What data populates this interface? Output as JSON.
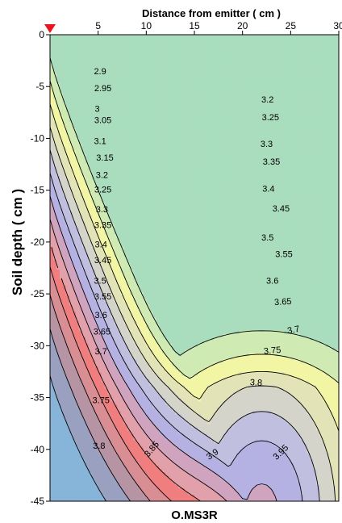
{
  "chart_data": {
    "type": "contour",
    "title": "O.MS3R",
    "xlabel": "Distance from emitter ( cm )",
    "ylabel": "Soil depth ( cm )",
    "xlim": [
      0,
      30
    ],
    "ylim": [
      -45,
      0
    ],
    "x_ticks": [
      "5",
      "10",
      "15",
      "20",
      "25",
      "30"
    ],
    "y_ticks": [
      "0",
      "-5",
      "-10",
      "-15",
      "-20",
      "-25",
      "-30",
      "-35",
      "-40",
      "-45"
    ],
    "marker": {
      "shape": "triangle-down",
      "x": 0,
      "y": 0,
      "color": "#e8141e"
    },
    "level_colors": [
      {
        "level": 2.85,
        "color": "#a9ddbd"
      },
      {
        "level": 2.9,
        "color": "#cfeab3"
      },
      {
        "level": 2.95,
        "color": "#f2f5a4"
      },
      {
        "level": 3.0,
        "color": "#e2e3b6"
      },
      {
        "level": 3.05,
        "color": "#d4d4cb"
      },
      {
        "level": 3.1,
        "color": "#c0bfdf"
      },
      {
        "level": 3.15,
        "color": "#b5b2e3"
      },
      {
        "level": 3.2,
        "color": "#d0a4bf"
      },
      {
        "level": 3.25,
        "color": "#e2a0ab"
      },
      {
        "level": 3.3,
        "color": "#f07e7e"
      },
      {
        "level": 3.35,
        "color": "#d98e94"
      },
      {
        "level": 3.4,
        "color": "#b794a4"
      },
      {
        "level": 3.45,
        "color": "#9aa0bf"
      },
      {
        "level": 3.5,
        "color": "#87b4d9"
      },
      {
        "level": 3.55,
        "color": "#7eb1d6"
      },
      {
        "level": 3.6,
        "color": "#93adbd"
      },
      {
        "level": 3.65,
        "color": "#aeb0a3"
      },
      {
        "level": 3.7,
        "color": "#d9ad7c"
      },
      {
        "level": 3.75,
        "color": "#fbb06c"
      },
      {
        "level": 3.8,
        "color": "#e8bd63"
      },
      {
        "level": 3.85,
        "color": "#dcca6a"
      },
      {
        "level": 3.9,
        "color": "#c4d466"
      },
      {
        "level": 3.95,
        "color": "#b3dc68"
      },
      {
        "level": 4.0,
        "color": "#c6dc86"
      },
      {
        "level": 4.05,
        "color": "#ddd9ae"
      }
    ],
    "contour_labels": [
      {
        "text": "2.9",
        "x": 5.2,
        "y": -3.6
      },
      {
        "text": "2.95",
        "x": 5.5,
        "y": -5.2
      },
      {
        "text": "3",
        "x": 4.9,
        "y": -7.2
      },
      {
        "text": "3.05",
        "x": 5.5,
        "y": -8.3
      },
      {
        "text": "3.1",
        "x": 5.2,
        "y": -10.3
      },
      {
        "text": "3.15",
        "x": 5.7,
        "y": -11.9
      },
      {
        "text": "3.2",
        "x": 5.4,
        "y": -13.6
      },
      {
        "text": "3.25",
        "x": 5.5,
        "y": -15.0
      },
      {
        "text": "3.3",
        "x": 5.4,
        "y": -16.9
      },
      {
        "text": "3.35",
        "x": 5.5,
        "y": -18.4
      },
      {
        "text": "3.4",
        "x": 5.3,
        "y": -20.3
      },
      {
        "text": "3.45",
        "x": 5.5,
        "y": -21.8
      },
      {
        "text": "3.5",
        "x": 5.2,
        "y": -23.8
      },
      {
        "text": "3.55",
        "x": 5.5,
        "y": -25.3
      },
      {
        "text": "3.6",
        "x": 5.3,
        "y": -27.1
      },
      {
        "text": "3.65",
        "x": 5.4,
        "y": -28.7
      },
      {
        "text": "3.7",
        "x": 5.3,
        "y": -30.6
      },
      {
        "text": "3.75",
        "x": 5.3,
        "y": -35.3
      },
      {
        "text": "3.8",
        "x": 5.1,
        "y": -39.7
      },
      {
        "text": "3.85",
        "x": 10.6,
        "y": -40.0
      },
      {
        "text": "3.9",
        "x": 16.9,
        "y": -40.5
      },
      {
        "text": "3.95",
        "x": 24.0,
        "y": -40.3
      },
      {
        "text": "3.2",
        "x": 22.6,
        "y": -6.3
      },
      {
        "text": "3.25",
        "x": 22.9,
        "y": -8.0
      },
      {
        "text": "3.3",
        "x": 22.5,
        "y": -10.6
      },
      {
        "text": "3.35",
        "x": 23.0,
        "y": -12.3
      },
      {
        "text": "3.4",
        "x": 22.7,
        "y": -14.9
      },
      {
        "text": "3.45",
        "x": 24.0,
        "y": -16.8
      },
      {
        "text": "3.5",
        "x": 22.6,
        "y": -19.6
      },
      {
        "text": "3.55",
        "x": 24.3,
        "y": -21.2
      },
      {
        "text": "3.6",
        "x": 23.1,
        "y": -23.8
      },
      {
        "text": "3.65",
        "x": 24.2,
        "y": -25.8
      },
      {
        "text": "3.7",
        "x": 25.3,
        "y": -28.5
      },
      {
        "text": "3.75",
        "x": 23.1,
        "y": -30.5
      },
      {
        "text": "3.8",
        "x": 21.4,
        "y": -33.6
      }
    ]
  }
}
